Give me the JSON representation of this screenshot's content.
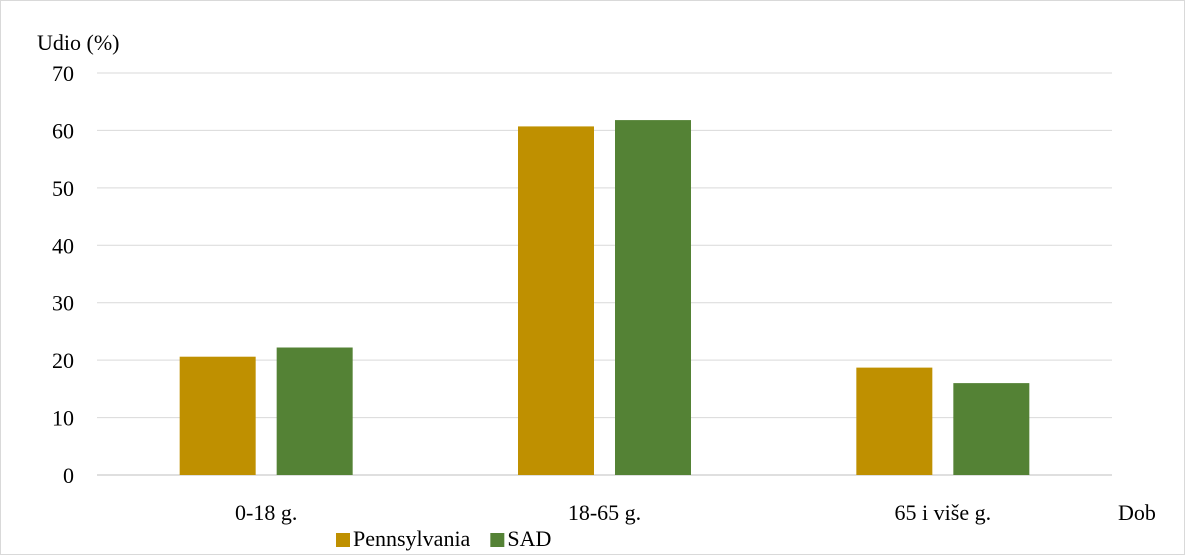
{
  "chart_data": {
    "type": "bar",
    "title": "",
    "ylabel": "Udio (%)",
    "xlabel": "Dob",
    "categories": [
      "0-18 g.",
      "18-65 g.",
      "65 i više g."
    ],
    "series": [
      {
        "name": "Pennsylvania",
        "color": "#BF9000",
        "values": [
          20.6,
          60.7,
          18.7
        ]
      },
      {
        "name": "SAD",
        "color": "#548235",
        "values": [
          22.2,
          61.8,
          16.0
        ]
      }
    ],
    "ylim": [
      0,
      70
    ],
    "yticks": [
      0,
      10,
      20,
      30,
      40,
      50,
      60,
      70
    ],
    "grid": true,
    "legend_position": "bottom"
  }
}
